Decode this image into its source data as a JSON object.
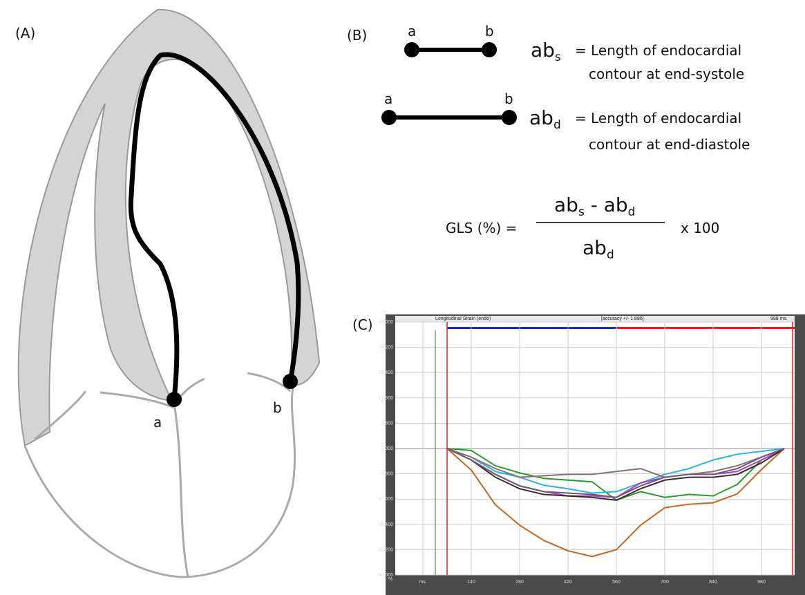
{
  "panel_a": {
    "label": "(A)",
    "point_a": "a",
    "point_b": "b"
  },
  "panel_b": {
    "label": "(B)",
    "systole": {
      "a": "a",
      "b": "b",
      "symbol": "ab",
      "subscript": "s",
      "line1": "= Length of endocardial",
      "line2": "contour at end-systole"
    },
    "diastole": {
      "a": "a",
      "b": "b",
      "symbol": "ab",
      "subscript": "d",
      "line1": "= Length of endocardial",
      "line2": "contour at end-diastole"
    },
    "formula": {
      "lhs": "GLS (%) =",
      "num_1": "ab",
      "num_1_sub": "s",
      "num_2": " - ab",
      "num_2_sub": "d",
      "den": "ab",
      "den_sub": "d",
      "factor": "x 100"
    }
  },
  "panel_c": {
    "label": "(C)"
  },
  "chart_data": {
    "type": "line",
    "title": "Longitudinal Strain (endo)",
    "annotations": [
      "[accuracy +/- 1.886]",
      "998 ms."
    ],
    "y_label": "%",
    "x": [
      70,
      140,
      210,
      280,
      350,
      420,
      490,
      560,
      630,
      700,
      770,
      840,
      910,
      980,
      1046
    ],
    "series": [
      {
        "color": "#c8641e",
        "values": [
          0,
          -7.5,
          -19.6,
          -26.7,
          -32,
          -35.6,
          -37.6,
          -35.2,
          -26.7,
          -20.6,
          -19.4,
          -18.9,
          -15.8,
          -7.3,
          0
        ]
      },
      {
        "color": "#2a9a2a",
        "values": [
          0,
          -0.7,
          -6,
          -8.5,
          -10.4,
          -11,
          -11.6,
          -18,
          -15,
          -17,
          -16,
          -16.5,
          -12.5,
          -4,
          0
        ]
      },
      {
        "color": "#2ab4e6",
        "values": [
          0,
          -3,
          -8,
          -10,
          -12.8,
          -14,
          -15.5,
          -15,
          -12,
          -9,
          -7,
          -4,
          -2,
          -1,
          0
        ]
      },
      {
        "color": "#b43cc8",
        "values": [
          0,
          -4,
          -9,
          -13,
          -15,
          -16.5,
          -16.5,
          -17,
          -12,
          -10,
          -9,
          -9,
          -8,
          -4,
          0
        ]
      },
      {
        "color": "#3c2a28",
        "values": [
          0,
          -4,
          -10,
          -14,
          -16,
          -16.5,
          -17,
          -18,
          -14,
          -11,
          -10,
          -10,
          -9,
          -5,
          0
        ]
      },
      {
        "color": "#8c6e6e",
        "values": [
          0,
          -3,
          -7,
          -10,
          -9.5,
          -9,
          -9,
          -8,
          -7,
          -10,
          -9,
          -8,
          -6,
          -3,
          0
        ]
      },
      {
        "color": "#6e5a78",
        "values": [
          0,
          -4,
          -9,
          -13,
          -15,
          -15.5,
          -16,
          -17,
          -13,
          -10,
          -9,
          -9,
          -7,
          -3,
          0
        ]
      }
    ],
    "xlim": [
      -80,
      1076
    ],
    "xticks": [
      {
        "value": 0,
        "label": "ms."
      },
      140,
      280,
      420,
      560,
      700,
      840,
      980
    ],
    "ylim": [
      -44,
      44
    ],
    "yticks": [
      {
        "value": 44,
        "label": "44.000"
      },
      {
        "value": 35.2,
        "label": "35.200"
      },
      {
        "value": 26.4,
        "label": "26.400"
      },
      {
        "value": 17.6,
        "label": "17.600"
      },
      {
        "value": 8.8,
        "label": "8.800"
      },
      {
        "value": 0,
        "label": "0.000"
      },
      {
        "value": -8.8,
        "label": "-8.800"
      },
      {
        "value": -17.6,
        "label": "-17.600"
      },
      {
        "value": -26.4,
        "label": "-26.400"
      },
      {
        "value": -35.2,
        "label": "-35.200"
      },
      {
        "value": -44,
        "label": "-44.000"
      }
    ],
    "grid": true
  }
}
